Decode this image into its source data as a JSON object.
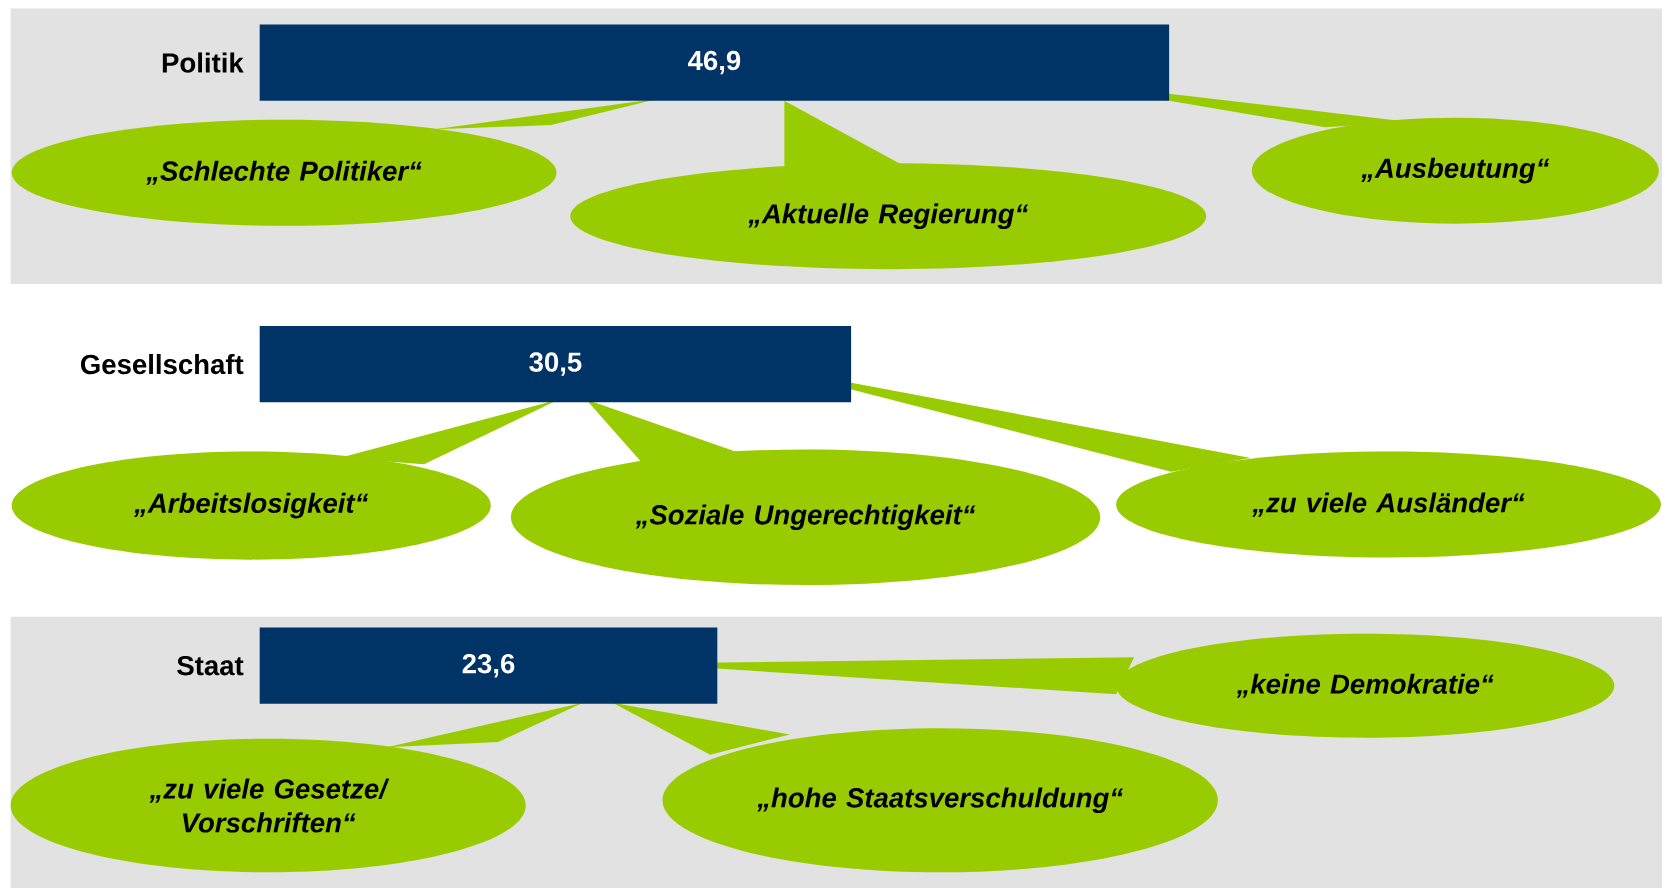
{
  "chart_data": {
    "type": "bar",
    "orientation": "horizontal",
    "color": "#003366",
    "categories": [
      "Politik",
      "Gesellschaft",
      "Staat"
    ],
    "values": [
      46.9,
      30.5,
      23.6
    ],
    "value_labels": [
      "46,9",
      "30,5",
      "23,6"
    ],
    "annotations": [
      "„Schlechte Politiker“",
      "„Aktuelle Regierung“",
      "„Ausbeutung“",
      "„Arbeitslosigkeit“",
      "„Soziale Ungerechtigkeit“",
      "„zu viele Ausländer“",
      "„keine Demokratie“",
      "„zu viele Gesetze/ Vorschriften“",
      "„hohe Staatsverschuldung“"
    ]
  }
}
